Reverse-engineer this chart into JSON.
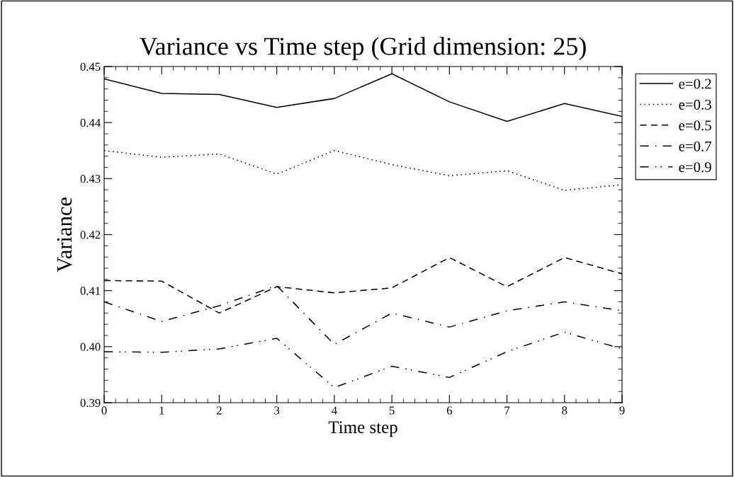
{
  "chart_data": {
    "type": "line",
    "title": "Variance vs Time step (Grid dimension: 25)",
    "xlabel": "Time step",
    "ylabel": "Variance",
    "x": [
      0,
      1,
      2,
      3,
      4,
      5,
      6,
      7,
      8,
      9
    ],
    "series": [
      {
        "name": "e=0.2",
        "color": "#000000",
        "line_style": "solid",
        "values": [
          0.4478,
          0.4452,
          0.445,
          0.4427,
          0.4443,
          0.4487,
          0.4437,
          0.4402,
          0.4434,
          0.4411
        ]
      },
      {
        "name": "e=0.3",
        "color": "#000000",
        "line_style": "dotted",
        "values": [
          0.435,
          0.4338,
          0.4344,
          0.4308,
          0.435,
          0.4325,
          0.4305,
          0.4314,
          0.4279,
          0.4289
        ]
      },
      {
        "name": "e=0.5",
        "color": "#000000",
        "line_style": "dashed",
        "values": [
          0.4118,
          0.4117,
          0.406,
          0.4107,
          0.4096,
          0.4105,
          0.4159,
          0.4107,
          0.4159,
          0.413
        ]
      },
      {
        "name": "e=0.7",
        "color": "#000000",
        "line_style": "dashdot",
        "values": [
          0.408,
          0.4045,
          0.4073,
          0.4109,
          0.4004,
          0.406,
          0.4035,
          0.4064,
          0.408,
          0.4064
        ]
      },
      {
        "name": "e=0.9",
        "color": "#000000",
        "line_style": "dashdotdot",
        "values": [
          0.3991,
          0.399,
          0.3996,
          0.4015,
          0.3927,
          0.3965,
          0.3945,
          0.3991,
          0.4026,
          0.3996
        ]
      }
    ],
    "xlim": [
      0,
      9
    ],
    "xticks": [
      0,
      1,
      2,
      3,
      4,
      5,
      6,
      7,
      8,
      9
    ],
    "ylim": [
      0.39,
      0.45
    ],
    "yticks": [
      {
        "value": 0.39,
        "label": "0.39"
      },
      {
        "value": 0.4,
        "label": "0.40"
      },
      {
        "value": 0.41,
        "label": "0.41"
      },
      {
        "value": 0.42,
        "label": "0.42"
      },
      {
        "value": 0.43,
        "label": "0.43"
      },
      {
        "value": 0.44,
        "label": "0.44"
      },
      {
        "value": 0.45,
        "label": "0.45"
      }
    ],
    "grid": false,
    "legend": "right",
    "marker": "none"
  }
}
